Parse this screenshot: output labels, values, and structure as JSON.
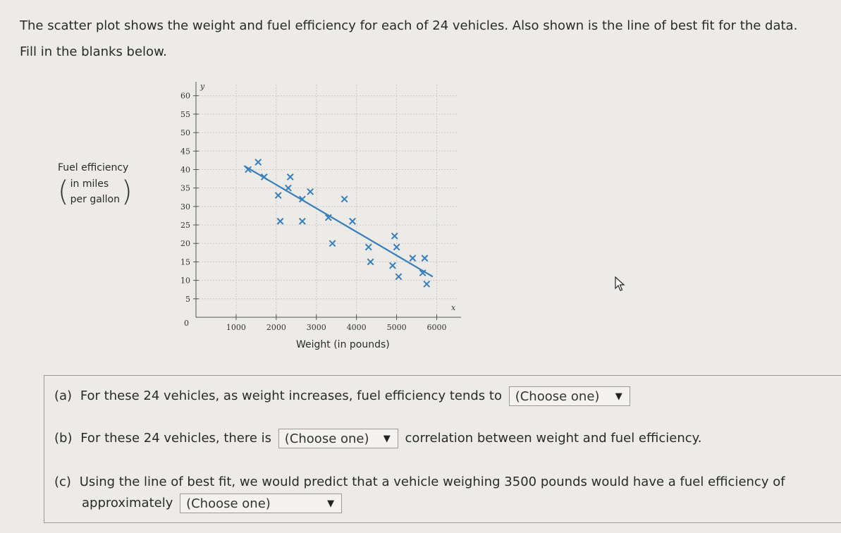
{
  "intro": {
    "line1": "The scatter plot shows the weight and fuel efficiency for each of 24 vehicles. Also shown is the line of best fit for the data.",
    "line2": "Fill in the blanks below."
  },
  "ylabel": {
    "main": "Fuel efficiency",
    "line_a": "in miles",
    "line_b": "per gallon"
  },
  "chart_data": {
    "type": "scatter",
    "xlabel": "Weight (in pounds)",
    "ylabel": "Fuel efficiency (in miles per gallon)",
    "x_axis_letter": "x",
    "y_axis_letter": "y",
    "origin_label": "0",
    "xlim": [
      0,
      6500
    ],
    "ylim": [
      0,
      63
    ],
    "xticks": [
      1000,
      2000,
      3000,
      4000,
      5000,
      6000
    ],
    "yticks": [
      5,
      10,
      15,
      20,
      25,
      30,
      35,
      40,
      45,
      50,
      55,
      60
    ],
    "grid": true,
    "marker_color": "#3a7fb8",
    "points": [
      {
        "x": 1300,
        "y": 40
      },
      {
        "x": 1550,
        "y": 42
      },
      {
        "x": 1700,
        "y": 38
      },
      {
        "x": 2350,
        "y": 38
      },
      {
        "x": 2050,
        "y": 33
      },
      {
        "x": 2300,
        "y": 35
      },
      {
        "x": 2650,
        "y": 32
      },
      {
        "x": 2850,
        "y": 34
      },
      {
        "x": 2100,
        "y": 26
      },
      {
        "x": 2650,
        "y": 26
      },
      {
        "x": 3300,
        "y": 27
      },
      {
        "x": 3700,
        "y": 32
      },
      {
        "x": 3900,
        "y": 26
      },
      {
        "x": 3400,
        "y": 20
      },
      {
        "x": 4300,
        "y": 19
      },
      {
        "x": 4350,
        "y": 15
      },
      {
        "x": 4950,
        "y": 22
      },
      {
        "x": 5000,
        "y": 19
      },
      {
        "x": 4900,
        "y": 14
      },
      {
        "x": 5050,
        "y": 11
      },
      {
        "x": 5400,
        "y": 16
      },
      {
        "x": 5700,
        "y": 16
      },
      {
        "x": 5650,
        "y": 12
      },
      {
        "x": 5750,
        "y": 9
      }
    ],
    "best_fit": {
      "x1": 1200,
      "y1": 41,
      "x2": 5900,
      "y2": 11
    }
  },
  "questions": {
    "a": {
      "label": "(a)",
      "before": "For these 24 vehicles, as weight increases, fuel efficiency tends to",
      "select": "(Choose one)",
      "after": ""
    },
    "b": {
      "label": "(b)",
      "before": "For these 24 vehicles, there is",
      "select": "(Choose one)",
      "after": "correlation between weight and fuel efficiency."
    },
    "c": {
      "label": "(c)",
      "before": "Using the line of best fit, we would predict that a vehicle weighing 3500 pounds would have a fuel efficiency of",
      "before2": "approximately",
      "select": "(Choose one)"
    }
  },
  "icons": {
    "dropdown": "chevron-down-icon",
    "cursor": "mouse-pointer-icon"
  }
}
